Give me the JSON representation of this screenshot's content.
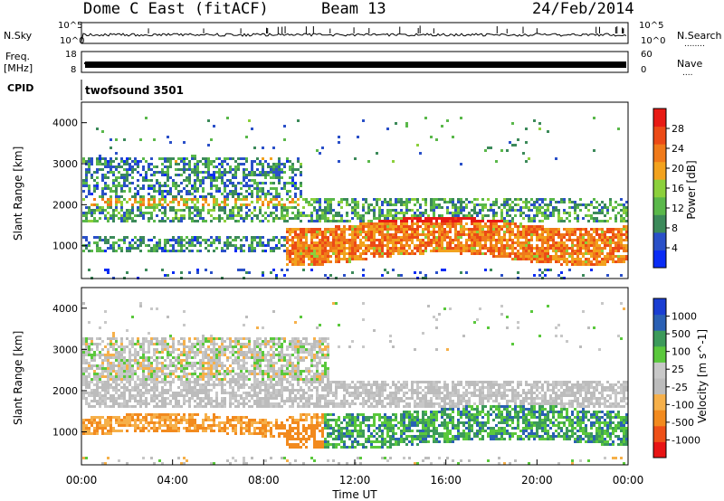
{
  "header": {
    "station": "Dome C East (fitACF)",
    "beam": "Beam 13",
    "date": "24/Feb/2014"
  },
  "left_labels": {
    "nsky": "N.Sky",
    "freq_top": "Freq.",
    "freq_bottom": "[MHz]",
    "cpid": "CPID"
  },
  "right_labels": {
    "nsearch": "N.Search",
    "nsearch_dots": "........",
    "nave": "Nave",
    "nave_dots": "...."
  },
  "cpid_text": "twofsound 3501",
  "x_axis": {
    "ticks": [
      "00:00",
      "04:00",
      "08:00",
      "12:00",
      "16:00",
      "20:00",
      "00:00"
    ],
    "label": "Time UT"
  },
  "colors": {
    "power_scale": [
      "#0a2cf5",
      "#2a50c8",
      "#3c8a5a",
      "#5ab84a",
      "#8cd03c",
      "#f2a21e",
      "#f07a1a",
      "#ec4a16",
      "#e81a14"
    ],
    "velocity_scale": [
      "#e81414",
      "#ee5018",
      "#f28a1e",
      "#f6b04a",
      "#bcbcbc",
      "#c8c8c8",
      "#5ac83c",
      "#3c9a5a",
      "#2a60b4",
      "#1a3ed2"
    ]
  },
  "chart_data": [
    {
      "type": "line",
      "name": "noise-sky-search",
      "left_ticks": [
        "10^5",
        "10^0"
      ],
      "right_ticks": [
        "10^5",
        "10^0"
      ]
    },
    {
      "type": "line",
      "name": "freq-nave",
      "left_ticks": [
        "18",
        "8"
      ],
      "right_ticks": [
        "60",
        "0"
      ]
    },
    {
      "type": "heatmap",
      "name": "power",
      "ylabel": "Slant Range [km]",
      "yticks": [
        "4000",
        "3000",
        "2000",
        "1000"
      ],
      "ytick_values": [
        4000,
        3000,
        2000,
        1000
      ],
      "ylim": [
        200,
        4500
      ],
      "colorbar_label": "Power [dB]",
      "colorbar_ticks": [
        "28",
        "24",
        "20",
        "16",
        "12",
        "8",
        "4"
      ]
    },
    {
      "type": "heatmap",
      "name": "velocity",
      "ylabel": "Slant Range [km]",
      "yticks": [
        "4000",
        "3000",
        "2000",
        "1000"
      ],
      "ytick_values": [
        4000,
        3000,
        2000,
        1000
      ],
      "ylim": [
        200,
        4500
      ],
      "colorbar_label": "Velocity [m s^-1]",
      "colorbar_ticks": [
        "1000",
        "500",
        "100",
        "25",
        "-25",
        "-100",
        "-500",
        "-1000"
      ]
    }
  ]
}
